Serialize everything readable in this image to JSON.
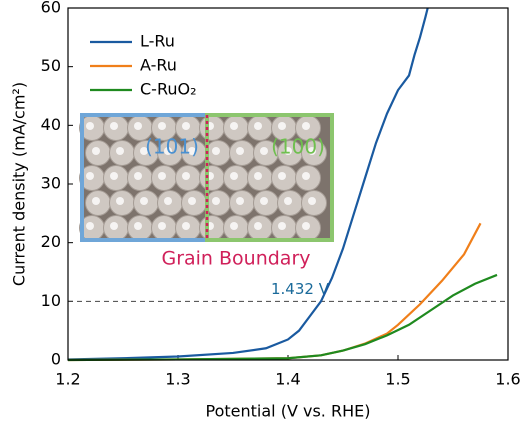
{
  "chart_data": {
    "type": "line",
    "xlabel": "Potential (V vs. RHE)",
    "ylabel": "Current density (mA/cm²)",
    "xlim": [
      1.2,
      1.6
    ],
    "xticks": [
      1.2,
      1.3,
      1.4,
      1.5,
      1.6
    ],
    "ylim": [
      0,
      60
    ],
    "yticks": [
      0,
      10,
      20,
      30,
      40,
      50,
      60
    ],
    "legend": "upper left",
    "series": [
      {
        "name": "L-Ru",
        "color": "#1a5aa0",
        "x": [
          1.2,
          1.25,
          1.3,
          1.35,
          1.38,
          1.4,
          1.41,
          1.42,
          1.43,
          1.44,
          1.45,
          1.46,
          1.47,
          1.48,
          1.49,
          1.5,
          1.51,
          1.515,
          1.52,
          1.525,
          1.527
        ],
        "values": [
          0.1,
          0.3,
          0.6,
          1.2,
          2,
          3.5,
          5,
          7.5,
          10,
          14,
          19,
          25,
          31,
          37,
          42,
          46,
          48.5,
          52,
          55,
          58.5,
          60
        ]
      },
      {
        "name": "A-Ru",
        "color": "#f07f1a",
        "x": [
          1.2,
          1.3,
          1.4,
          1.43,
          1.45,
          1.47,
          1.49,
          1.5,
          1.52,
          1.54,
          1.56,
          1.575
        ],
        "values": [
          0,
          0.1,
          0.3,
          0.8,
          1.6,
          2.8,
          4.5,
          6,
          9.5,
          13.5,
          18,
          23.3
        ]
      },
      {
        "name": "C-RuO₂",
        "color": "#1f8a1f",
        "x": [
          1.2,
          1.3,
          1.4,
          1.43,
          1.45,
          1.47,
          1.49,
          1.51,
          1.53,
          1.55,
          1.57,
          1.59
        ],
        "values": [
          0,
          0.1,
          0.3,
          0.8,
          1.6,
          2.7,
          4.2,
          6,
          8.5,
          11,
          13,
          14.5
        ]
      }
    ],
    "reference_line": {
      "value": 10,
      "label": "1.432 V"
    },
    "inset": {
      "left_label": "(101)",
      "right_label": "(100)",
      "caption": "Grain Boundary"
    }
  }
}
